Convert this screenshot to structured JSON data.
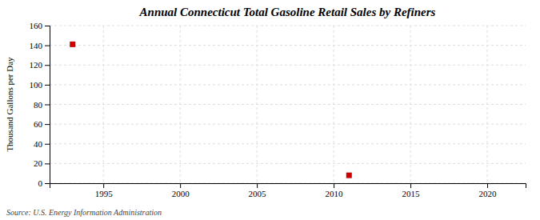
{
  "chart_data": {
    "type": "scatter",
    "title": "Annual Connecticut Total Gasoline Retail Sales by Refiners",
    "ylabel": "Thousand Gallons per Day",
    "annotations": [
      "Source: U.S. Energy Information Administration"
    ],
    "x": [
      1993,
      2011
    ],
    "values": [
      141,
      8
    ],
    "color": "#cc0000",
    "marker": "square",
    "xlim": [
      1991.5,
      2022.5
    ],
    "ylim": [
      0,
      160
    ],
    "xticks": [
      1995,
      2000,
      2005,
      2010,
      2015,
      2020
    ],
    "yticks": [
      0,
      20,
      40,
      60,
      80,
      100,
      120,
      140,
      160
    ],
    "grid": true
  }
}
